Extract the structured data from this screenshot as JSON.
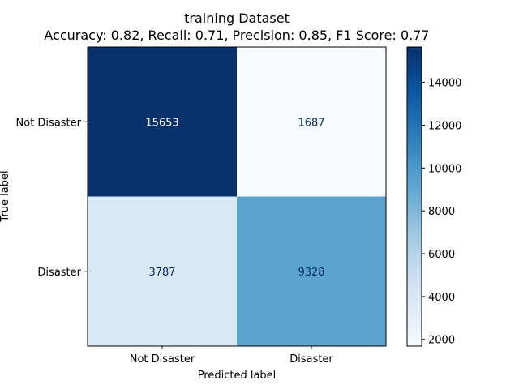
{
  "chart_data": {
    "type": "heatmap",
    "title": "training Dataset",
    "subtitle": "Accuracy: 0.82, Recall: 0.71, Precision: 0.85, F1 Score: 0.77",
    "xlabel": "Predicted label",
    "ylabel": "True label",
    "x_categories": [
      "Not Disaster",
      "Disaster"
    ],
    "y_categories": [
      "Not Disaster",
      "Disaster"
    ],
    "values": [
      [
        15653,
        1687
      ],
      [
        3787,
        9328
      ]
    ],
    "colormap": "Blues",
    "colorbar": {
      "range": [
        1687,
        15653
      ],
      "ticks": [
        2000,
        4000,
        6000,
        8000,
        10000,
        12000,
        14000
      ],
      "tick_labels": [
        "2000",
        "4000",
        "6000",
        "8000",
        "10000",
        "12000",
        "14000"
      ]
    },
    "grid": false
  }
}
